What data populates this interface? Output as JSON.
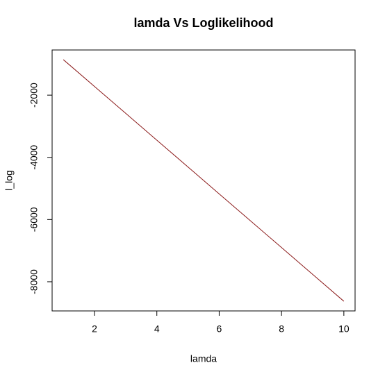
{
  "chart_data": {
    "type": "line",
    "title": "lamda Vs Loglikelihood",
    "x_label": "lamda",
    "y_label": "l_log",
    "x": [
      1,
      2,
      3,
      4,
      5,
      6,
      7,
      8,
      9,
      10
    ],
    "series": [
      {
        "name": "l_log",
        "color": "#8b1a1a",
        "values": [
          -858,
          -1721,
          -2584,
          -3447,
          -4310,
          -5174,
          -6037,
          -6900,
          -7764,
          -8627
        ]
      }
    ],
    "xlim": [
      0.64,
      10.36
    ],
    "xticks": [
      2,
      4,
      6,
      8,
      10
    ],
    "ylim": [
      -8938,
      -547
    ],
    "yticks": [
      -8000,
      -6000,
      -4000,
      -2000
    ]
  }
}
